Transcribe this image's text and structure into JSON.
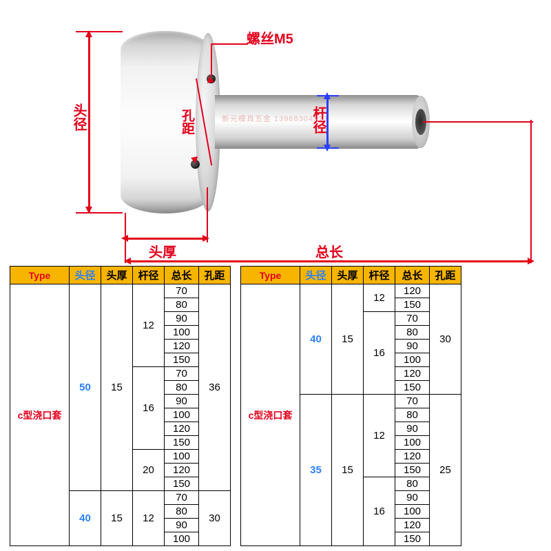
{
  "diagram": {
    "labels": {
      "head_diameter": "头径",
      "head_thickness": "头厚",
      "shaft_diameter": "杆径",
      "total_length": "总长",
      "hole_distance": "孔距",
      "screw": "螺丝M5"
    },
    "watermark": "新元模具五金 13968304513",
    "colors": {
      "dim_red": "#e3001b",
      "dim_blue": "#2a3fff",
      "header_bg": "#f7b500",
      "type_text": "#e3001b",
      "head_dia_text": "#2a7fff"
    }
  },
  "headers": [
    "Type",
    "头径",
    "头厚",
    "杆径",
    "总长",
    "孔距"
  ],
  "left_table": {
    "type_label": "c型浇口套",
    "groups": [
      {
        "head_dia": "50",
        "head_thk": "15",
        "hole_dist": "36",
        "shafts": [
          {
            "dia": "12",
            "lengths": [
              "70",
              "80",
              "90",
              "100",
              "120",
              "150"
            ]
          },
          {
            "dia": "16",
            "lengths": [
              "70",
              "80",
              "90",
              "100",
              "120",
              "150"
            ]
          },
          {
            "dia": "20",
            "lengths": [
              "100",
              "120",
              "150"
            ]
          }
        ]
      },
      {
        "head_dia": "40",
        "head_thk": "15",
        "hole_dist": "30",
        "shafts": [
          {
            "dia": "12",
            "lengths": [
              "70",
              "80",
              "90",
              "100"
            ]
          }
        ]
      }
    ]
  },
  "right_table": {
    "type_label": "c型浇口套",
    "groups": [
      {
        "head_dia": "40",
        "head_thk": "15",
        "hole_dist": "30",
        "shafts": [
          {
            "dia": "12",
            "lengths": [
              "120",
              "150"
            ]
          },
          {
            "dia": "16",
            "lengths": [
              "70",
              "80",
              "90",
              "100",
              "120",
              "150"
            ]
          }
        ]
      },
      {
        "head_dia": "35",
        "head_thk": "15",
        "hole_dist": "25",
        "shafts": [
          {
            "dia": "12",
            "lengths": [
              "70",
              "80",
              "90",
              "100",
              "120",
              "150"
            ]
          },
          {
            "dia": "16",
            "lengths": [
              "80",
              "90",
              "100",
              "120",
              "150"
            ]
          }
        ]
      }
    ]
  }
}
